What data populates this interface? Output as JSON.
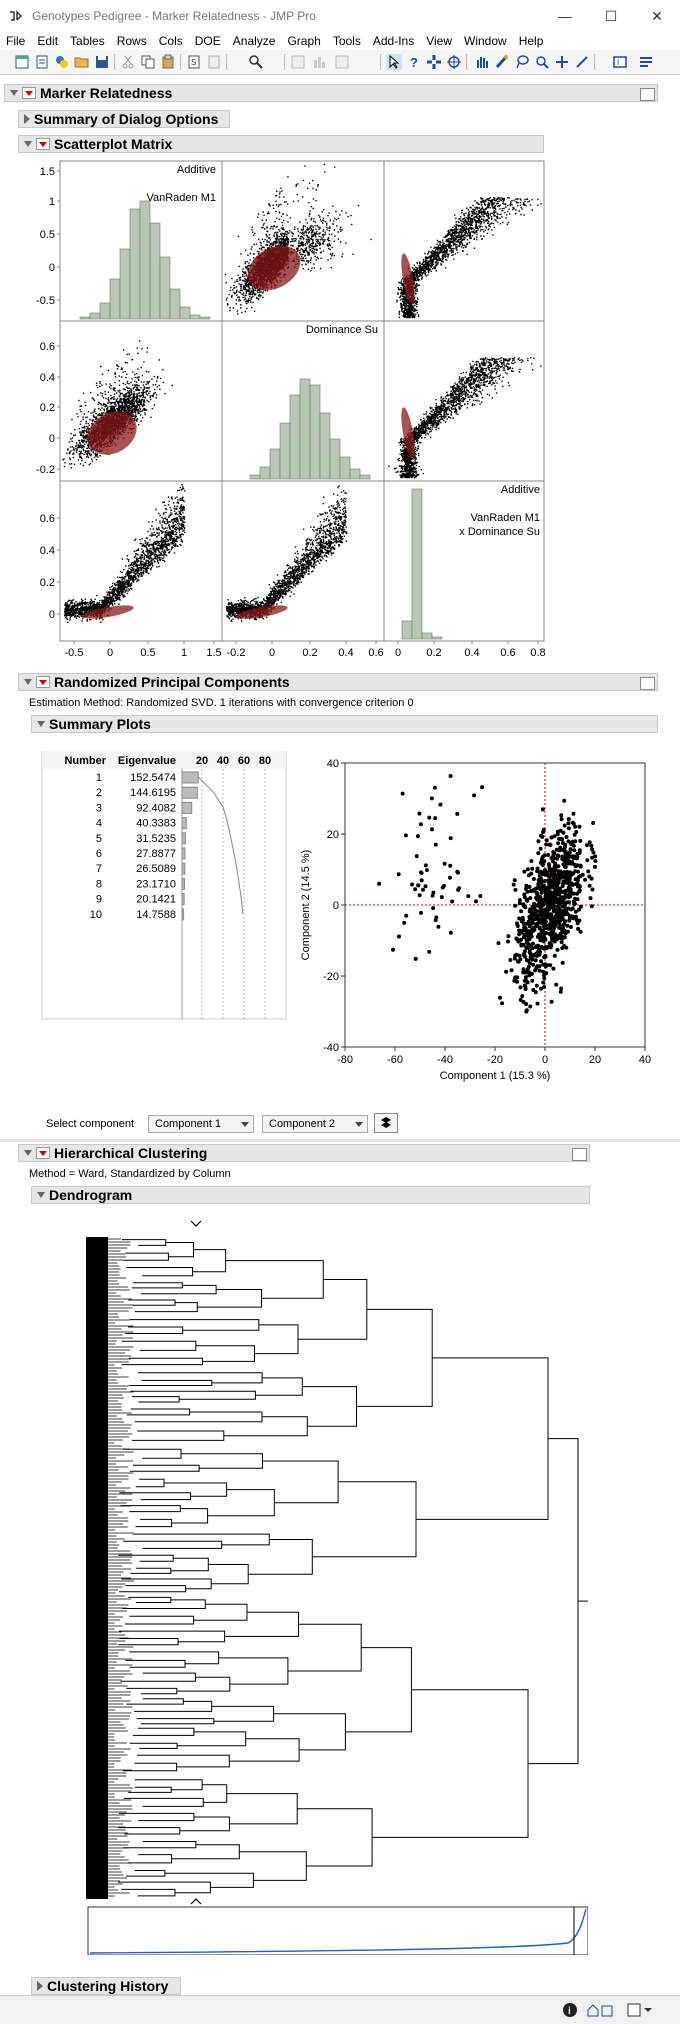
{
  "window": {
    "title": "Genotypes Pedigree - Marker Relatedness - JMP Pro"
  },
  "menu": [
    "File",
    "Edit",
    "Tables",
    "Rows",
    "Cols",
    "DOE",
    "Analyze",
    "Graph",
    "Tools",
    "Add-Ins",
    "View",
    "Window",
    "Help"
  ],
  "report": {
    "title": "Marker Relatedness",
    "summary_dialog": "Summary of Dialog Options",
    "scatter": {
      "title": "Scatterplot Matrix",
      "diag": [
        {
          "lines": [
            "Additive",
            "",
            "VanRaden M1"
          ]
        },
        {
          "lines": [
            "Dominance Su"
          ]
        },
        {
          "lines": [
            "Additive",
            "",
            "VanRaden M1",
            "x Dominance Su"
          ]
        }
      ],
      "y_ticks": [
        [
          "1.5",
          "1",
          "0.5",
          "0",
          "-0.5"
        ],
        [
          "0.6",
          "0.4",
          "0.2",
          "0",
          "-0.2"
        ],
        [
          "0.6",
          "0.4",
          "0.2",
          "0"
        ]
      ],
      "x_ticks": [
        [
          "-0.5",
          "0",
          "0.5",
          "1",
          "1.5"
        ],
        [
          "-0.2",
          "0",
          "0.2",
          "0.4",
          "0.6"
        ],
        [
          "0",
          "0.2",
          "0.4",
          "0.6",
          "0.8"
        ]
      ]
    },
    "pca": {
      "title": "Randomized Principal Components",
      "method": "Estimation Method: Randomized SVD.   1 iterations with convergence criterion 0",
      "summary_title": "Summary Plots",
      "table_headers": [
        "Number",
        "Eigenvalue"
      ],
      "bar_ticks": [
        "20",
        "40",
        "60",
        "80"
      ],
      "rows": [
        {
          "n": "1",
          "ev": "152.5474"
        },
        {
          "n": "2",
          "ev": "144.6195"
        },
        {
          "n": "3",
          "ev": "92.4082"
        },
        {
          "n": "4",
          "ev": "40.3383"
        },
        {
          "n": "5",
          "ev": "31.5235"
        },
        {
          "n": "6",
          "ev": "27.8877"
        },
        {
          "n": "7",
          "ev": "26.5089"
        },
        {
          "n": "8",
          "ev": "23.1710"
        },
        {
          "n": "9",
          "ev": "20.1421"
        },
        {
          "n": "10",
          "ev": "14.7588"
        }
      ],
      "percents": [
        15.3,
        14.5,
        9.2,
        4.0,
        3.2,
        2.8,
        2.7,
        2.3,
        2.0,
        1.5
      ],
      "xlabel": "Component 1  (15.3 %)",
      "ylabel": "Component 2  (14.5 %)",
      "x_ticks": [
        "-80",
        "-60",
        "-40",
        "-20",
        "0",
        "20",
        "40"
      ],
      "y_ticks": [
        "40",
        "20",
        "0",
        "-20",
        "-40"
      ],
      "select_label": "Select component",
      "select1": "Component 1",
      "select2": "Component 2"
    },
    "clust": {
      "title": "Hierarchical Clustering",
      "method": "Method = Ward, Standardized by Column",
      "dendro_title": "Dendrogram",
      "history_title": "Clustering History"
    }
  },
  "colors": {
    "point": "#000000",
    "ellipse": "#8b1a1a",
    "hist": "#b8c8b4",
    "refline": "#e00000",
    "distance_line": "#1f5fcf"
  }
}
